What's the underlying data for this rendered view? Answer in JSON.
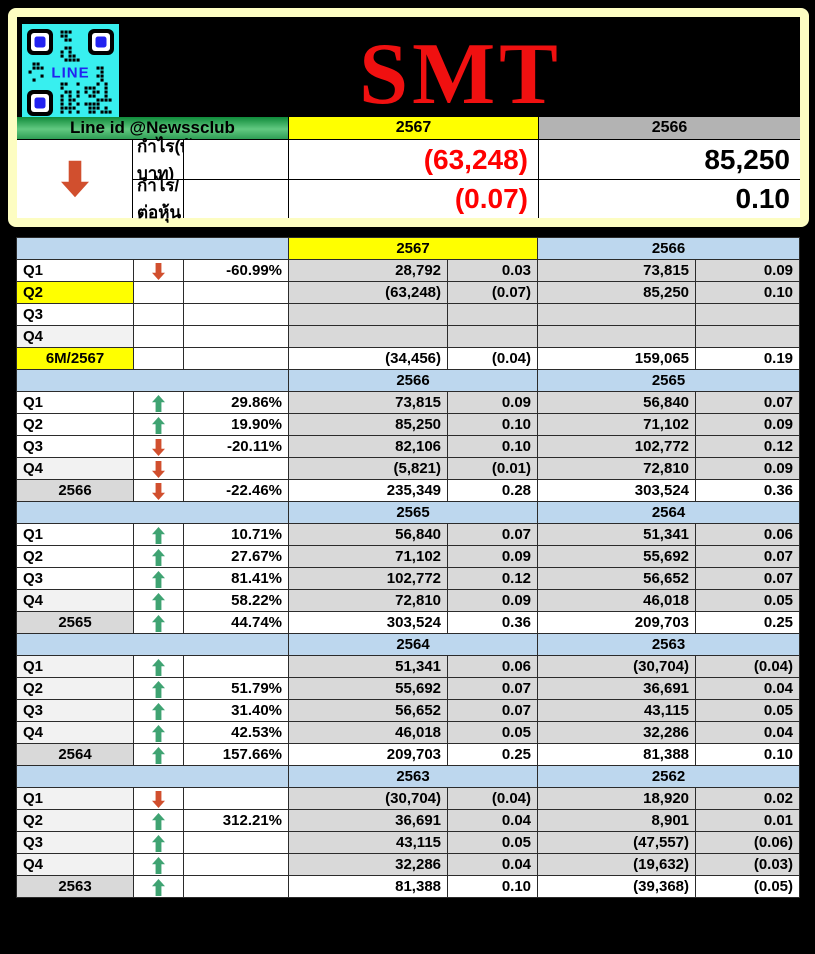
{
  "colors": {
    "frame_cream": "#FDFDC2",
    "accent_yellow": "#FFFF00",
    "header_blue": "#BDD7EE",
    "cell_gray": "#D9D9D9",
    "light_gray": "#F2F2F2",
    "summary_gray": "#B3B3B3",
    "negative_red": "#FF0000",
    "positive_green": "#008B00",
    "arrow_up_green": "#3FA372",
    "arrow_down_red": "#D14F2E",
    "title_red": "#F01010",
    "qr_cyan": "#38EFEF",
    "line_blue": "#2222F0"
  },
  "header": {
    "title": "SMT",
    "qr_label": "LINE"
  },
  "summary": {
    "line_id": "Line id @Newssclub",
    "year_left": "2567",
    "year_right": "2566",
    "trend_arrow": "down",
    "rows": [
      {
        "label": "กำไร(พันบาท)",
        "v1": "(63,248)",
        "v2": "85,250"
      },
      {
        "label": "กำไร/ต่อหุ้น",
        "v1": "(0.07)",
        "v2": "0.10"
      }
    ]
  },
  "blocks": [
    {
      "year_left": "2567",
      "year_left_bg": "#FFFF00",
      "year_right": "2566",
      "rows": [
        {
          "label": "Q1",
          "arrow": "down",
          "pct": "-60.99%",
          "v1": "28,792",
          "e1": "0.03",
          "v2": "73,815",
          "e2": "0.09"
        },
        {
          "label": "Q2",
          "label_bg": "#FFFF00",
          "arrow": "",
          "pct": "",
          "v1": "(63,248)",
          "e1": "(0.07)",
          "v2": "85,250",
          "e2": "0.10"
        },
        {
          "label": "Q3",
          "arrow": "",
          "pct": "",
          "v1": "",
          "e1": "",
          "v2": "",
          "e2": ""
        },
        {
          "label": "Q4",
          "label_bg": "#F2F2F2",
          "arrow": "",
          "pct": "",
          "v1": "",
          "e1": "",
          "v2": "",
          "e2": ""
        },
        {
          "label": "6M/2567",
          "label_bg": "#FFFF00",
          "total": true,
          "arrow": "",
          "pct": "",
          "v1": "(34,456)",
          "e1": "(0.04)",
          "v2": "159,065",
          "e2": "0.19"
        }
      ]
    },
    {
      "year_left": "2566",
      "year_right": "2565",
      "rows": [
        {
          "label": "Q1",
          "arrow": "up",
          "pct": "29.86%",
          "v1": "73,815",
          "e1": "0.09",
          "v2": "56,840",
          "e2": "0.07"
        },
        {
          "label": "Q2",
          "arrow": "up",
          "pct": "19.90%",
          "v1": "85,250",
          "e1": "0.10",
          "v2": "71,102",
          "e2": "0.09"
        },
        {
          "label": "Q3",
          "arrow": "down",
          "pct": "-20.11%",
          "v1": "82,106",
          "e1": "0.10",
          "v2": "102,772",
          "e2": "0.12"
        },
        {
          "label": "Q4",
          "label_bg": "#F2F2F2",
          "arrow": "down",
          "pct": "",
          "v1": "(5,821)",
          "e1": "(0.01)",
          "v2": "72,810",
          "e2": "0.09"
        },
        {
          "label": "2566",
          "total": true,
          "arrow": "down",
          "pct": "-22.46%",
          "v1": "235,349",
          "e1": "0.28",
          "v2": "303,524",
          "e2": "0.36"
        }
      ]
    },
    {
      "year_left": "2565",
      "year_right": "2564",
      "rows": [
        {
          "label": "Q1",
          "arrow": "up",
          "pct": "10.71%",
          "v1": "56,840",
          "e1": "0.07",
          "v2": "51,341",
          "e2": "0.06"
        },
        {
          "label": "Q2",
          "arrow": "up",
          "pct": "27.67%",
          "v1": "71,102",
          "e1": "0.09",
          "v2": "55,692",
          "e2": "0.07"
        },
        {
          "label": "Q3",
          "arrow": "up",
          "pct": "81.41%",
          "v1": "102,772",
          "e1": "0.12",
          "v2": "56,652",
          "e2": "0.07"
        },
        {
          "label": "Q4",
          "label_bg": "#F2F2F2",
          "arrow": "up",
          "pct": "58.22%",
          "v1": "72,810",
          "e1": "0.09",
          "v2": "46,018",
          "e2": "0.05"
        },
        {
          "label": "2565",
          "total": true,
          "arrow": "up",
          "pct": "44.74%",
          "v1": "303,524",
          "e1": "0.36",
          "v2": "209,703",
          "e2": "0.25"
        }
      ]
    },
    {
      "year_left": "2564",
      "year_right": "2563",
      "rows": [
        {
          "label": "Q1",
          "label_bg": "#F2F2F2",
          "arrow": "up",
          "pct": "",
          "v1": "51,341",
          "e1": "0.06",
          "v2": "(30,704)",
          "e2": "(0.04)"
        },
        {
          "label": "Q2",
          "label_bg": "#F2F2F2",
          "arrow": "up",
          "pct": "51.79%",
          "v1": "55,692",
          "e1": "0.07",
          "v2": "36,691",
          "e2": "0.04"
        },
        {
          "label": "Q3",
          "label_bg": "#F2F2F2",
          "arrow": "up",
          "pct": "31.40%",
          "v1": "56,652",
          "e1": "0.07",
          "v2": "43,115",
          "e2": "0.05"
        },
        {
          "label": "Q4",
          "label_bg": "#F2F2F2",
          "arrow": "up",
          "pct": "42.53%",
          "v1": "46,018",
          "e1": "0.05",
          "v2": "32,286",
          "e2": "0.04"
        },
        {
          "label": "2564",
          "total": true,
          "arrow": "up",
          "pct": "157.66%",
          "v1": "209,703",
          "e1": "0.25",
          "v2": "81,388",
          "e2": "0.10"
        }
      ]
    },
    {
      "year_left": "2563",
      "year_right": "2562",
      "rows": [
        {
          "label": "Q1",
          "label_bg": "#F2F2F2",
          "arrow": "down",
          "pct": "",
          "v1": "(30,704)",
          "e1": "(0.04)",
          "v2": "18,920",
          "e2": "0.02"
        },
        {
          "label": "Q2",
          "label_bg": "#F2F2F2",
          "arrow": "up",
          "pct": "312.21%",
          "v1": "36,691",
          "e1": "0.04",
          "v2": "8,901",
          "e2": "0.01"
        },
        {
          "label": "Q3",
          "label_bg": "#F2F2F2",
          "arrow": "up",
          "pct": "",
          "v1": "43,115",
          "e1": "0.05",
          "v2": "(47,557)",
          "e2": "(0.06)"
        },
        {
          "label": "Q4",
          "label_bg": "#F2F2F2",
          "arrow": "up",
          "pct": "",
          "v1": "32,286",
          "e1": "0.04",
          "v2": "(19,632)",
          "e2": "(0.03)"
        },
        {
          "label": "2563",
          "total": true,
          "arrow": "up",
          "pct": "",
          "v1": "81,388",
          "e1": "0.10",
          "v2": "(39,368)",
          "e2": "(0.05)"
        }
      ]
    }
  ]
}
